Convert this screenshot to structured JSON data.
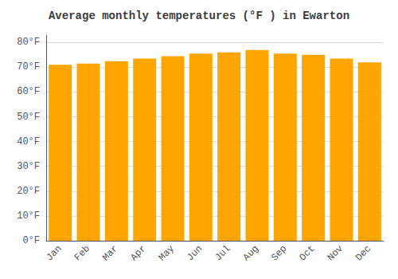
{
  "chart_data": {
    "type": "bar",
    "title": "Average monthly temperatures (°F ) in Ewarton",
    "categories": [
      "Jan",
      "Feb",
      "Mar",
      "Apr",
      "May",
      "Jun",
      "Jul",
      "Aug",
      "Sep",
      "Oct",
      "Nov",
      "Dec"
    ],
    "values": [
      71.0,
      71.5,
      72.5,
      73.5,
      74.5,
      75.5,
      76.0,
      77.0,
      75.5,
      75.0,
      73.5,
      72.0
    ],
    "color": "#FFA500",
    "ylim": [
      0,
      83
    ],
    "yticks": [
      {
        "value": 0,
        "label": "0°F"
      },
      {
        "value": 10,
        "label": "10°F"
      },
      {
        "value": 20,
        "label": "20°F"
      },
      {
        "value": 30,
        "label": "30°F"
      },
      {
        "value": 40,
        "label": "40°F"
      },
      {
        "value": 50,
        "label": "50°F"
      },
      {
        "value": 60,
        "label": "60°F"
      },
      {
        "value": 70,
        "label": "70°F"
      },
      {
        "value": 80,
        "label": "80°F"
      }
    ],
    "grid": true
  }
}
